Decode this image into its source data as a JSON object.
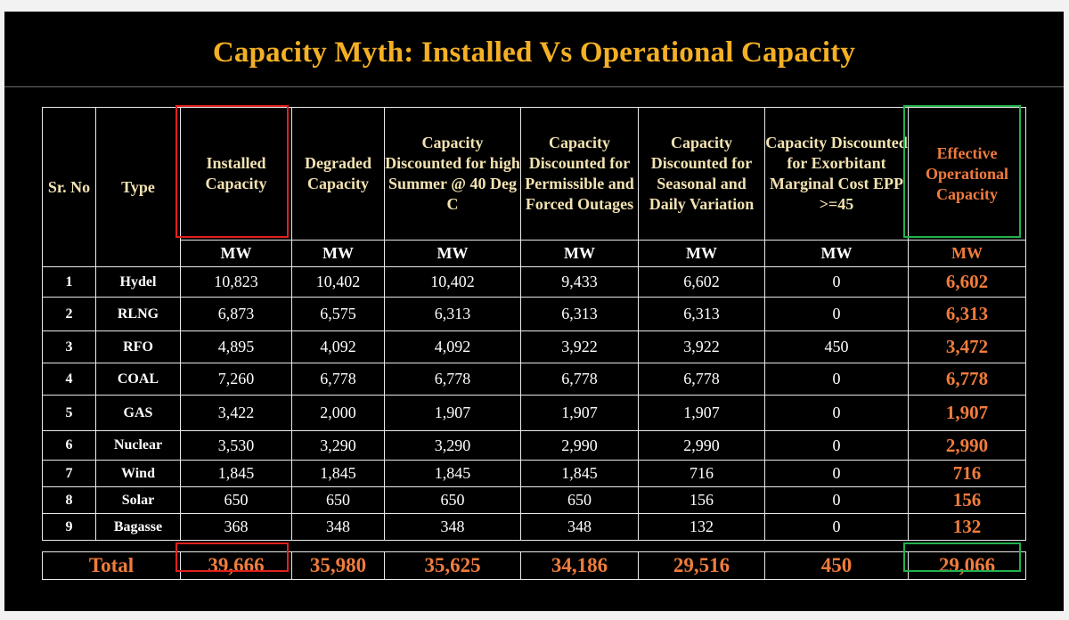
{
  "title": "Capacity Myth: Installed Vs Operational Capacity",
  "headers": [
    "Sr. No",
    "Type",
    "Installed Capacity",
    "Degraded Capacity",
    "Capacity Discounted for high Summer @ 40 Deg C",
    "Capacity Discounted for Permissible and Forced Outages",
    "Capacity Discounted for Seasonal and Daily Variation",
    "Capacity Discounted for Exorbitant Marginal Cost EPP >=45",
    "Effective Operational Capacity"
  ],
  "unit": "MW",
  "rows": [
    {
      "sr": "1",
      "type": "Hydel",
      "installed": "10,823",
      "degraded": "10,402",
      "summer": "10,402",
      "outages": "9,433",
      "seasonal": "6,602",
      "marginal": "0",
      "effective": "6,602"
    },
    {
      "sr": "2",
      "type": "RLNG",
      "installed": "6,873",
      "degraded": "6,575",
      "summer": "6,313",
      "outages": "6,313",
      "seasonal": "6,313",
      "marginal": "0",
      "effective": "6,313"
    },
    {
      "sr": "3",
      "type": "RFO",
      "installed": "4,895",
      "degraded": "4,092",
      "summer": "4,092",
      "outages": "3,922",
      "seasonal": "3,922",
      "marginal": "450",
      "effective": "3,472"
    },
    {
      "sr": "4",
      "type": "COAL",
      "installed": "7,260",
      "degraded": "6,778",
      "summer": "6,778",
      "outages": "6,778",
      "seasonal": "6,778",
      "marginal": "0",
      "effective": "6,778"
    },
    {
      "sr": "5",
      "type": "GAS",
      "installed": "3,422",
      "degraded": "2,000",
      "summer": "1,907",
      "outages": "1,907",
      "seasonal": "1,907",
      "marginal": "0",
      "effective": "1,907"
    },
    {
      "sr": "6",
      "type": "Nuclear",
      "installed": "3,530",
      "degraded": "3,290",
      "summer": "3,290",
      "outages": "2,990",
      "seasonal": "2,990",
      "marginal": "0",
      "effective": "2,990"
    },
    {
      "sr": "7",
      "type": "Wind",
      "installed": "1,845",
      "degraded": "1,845",
      "summer": "1,845",
      "outages": "1,845",
      "seasonal": "716",
      "marginal": "0",
      "effective": "716"
    },
    {
      "sr": "8",
      "type": "Solar",
      "installed": "650",
      "degraded": "650",
      "summer": "650",
      "outages": "650",
      "seasonal": "156",
      "marginal": "0",
      "effective": "156"
    },
    {
      "sr": "9",
      "type": "Bagasse",
      "installed": "368",
      "degraded": "348",
      "summer": "348",
      "outages": "348",
      "seasonal": "132",
      "marginal": "0",
      "effective": "132"
    }
  ],
  "total": {
    "label": "Total",
    "installed": "39,666",
    "degraded": "35,980",
    "summer": "35,625",
    "outages": "34,186",
    "seasonal": "29,516",
    "marginal": "450",
    "effective": "29,066"
  },
  "colors": {
    "background": "#000000",
    "title": "#f4b024",
    "header_text": "#f3e3b2",
    "effective": "#f07c3c",
    "installed_highlight": "#e0201d",
    "effective_highlight": "#22b14c"
  }
}
